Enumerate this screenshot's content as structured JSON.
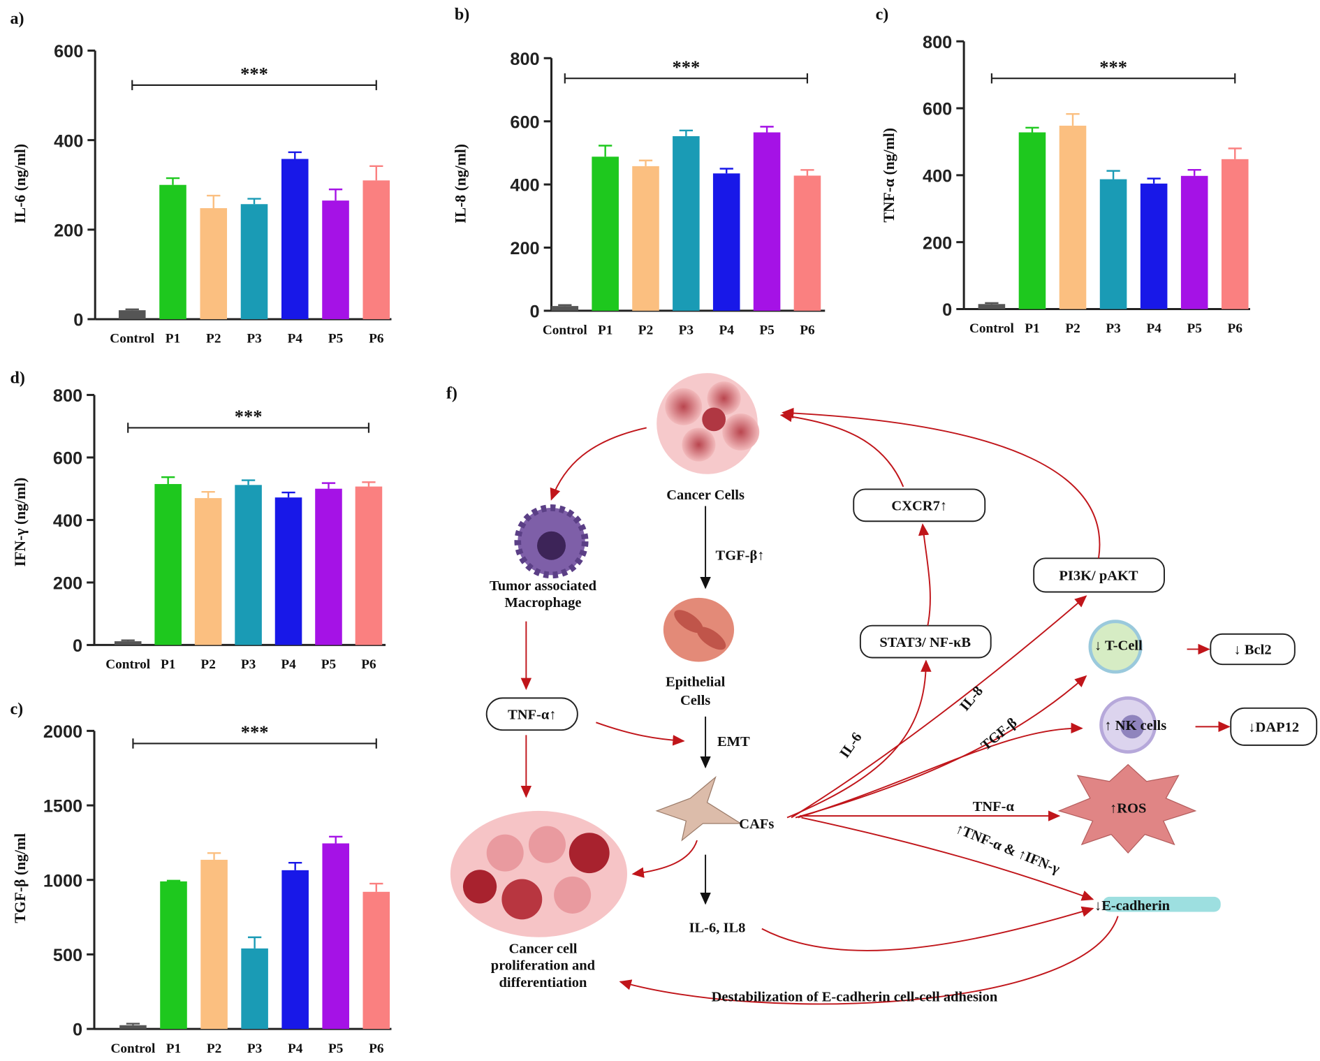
{
  "chart_data": [
    {
      "type": "bar",
      "panel": "a)",
      "ylabel": "IL-6  (ng/ml)",
      "annotation": "***",
      "categories": [
        "Control",
        "P1",
        "P2",
        "P3",
        "P4",
        "P5",
        "P6"
      ],
      "values": [
        20,
        300,
        248,
        257,
        358,
        265,
        310
      ],
      "errors": [
        2,
        15,
        28,
        12,
        15,
        25,
        32
      ],
      "colors": [
        "#555555",
        "#1ec81e",
        "#fbbf80",
        "#1a9bb5",
        "#1818e8",
        "#a512e6",
        "#fa8080"
      ],
      "ylim": [
        0,
        600
      ],
      "yticks": [
        0,
        200,
        400,
        600
      ]
    },
    {
      "type": "bar",
      "panel": "b)",
      "ylabel": "IL-8  (ng/ml)",
      "annotation": "***",
      "categories": [
        "Control",
        "P1",
        "P2",
        "P3",
        "P4",
        "P5",
        "P6"
      ],
      "values": [
        15,
        488,
        458,
        553,
        435,
        565,
        428
      ],
      "errors": [
        3,
        35,
        18,
        18,
        15,
        18,
        18
      ],
      "colors": [
        "#555555",
        "#1ec81e",
        "#fbbf80",
        "#1a9bb5",
        "#1818e8",
        "#a512e6",
        "#fa8080"
      ],
      "ylim": [
        0,
        800
      ],
      "yticks": [
        0,
        200,
        400,
        600,
        800
      ]
    },
    {
      "type": "bar",
      "panel": "c)",
      "ylabel": "TNF-α (ng/ml)",
      "annotation": "***",
      "categories": [
        "Control",
        "P1",
        "P2",
        "P3",
        "P4",
        "P5",
        "P6"
      ],
      "values": [
        15,
        528,
        548,
        388,
        375,
        398,
        448
      ],
      "errors": [
        3,
        14,
        35,
        25,
        15,
        18,
        32
      ],
      "colors": [
        "#555555",
        "#1ec81e",
        "#fbbf80",
        "#1a9bb5",
        "#1818e8",
        "#a512e6",
        "#fa8080"
      ],
      "ylim": [
        0,
        800
      ],
      "yticks": [
        0,
        200,
        400,
        600,
        800
      ]
    },
    {
      "type": "bar",
      "panel": "d)",
      "ylabel": "IFN-γ  (ng/ml)",
      "annotation": "***",
      "categories": [
        "Control",
        "P1",
        "P2",
        "P3",
        "P4",
        "P5",
        "P6"
      ],
      "values": [
        12,
        515,
        470,
        512,
        472,
        500,
        507
      ],
      "errors": [
        3,
        22,
        20,
        15,
        16,
        18,
        14
      ],
      "colors": [
        "#555555",
        "#1ec81e",
        "#fbbf80",
        "#1a9bb5",
        "#1818e8",
        "#a512e6",
        "#fa8080"
      ],
      "ylim": [
        0,
        800
      ],
      "yticks": [
        0,
        200,
        400,
        600,
        800
      ]
    },
    {
      "type": "bar",
      "panel": "c)",
      "ylabel": "TGF-β   (ng/ml",
      "annotation": "***",
      "categories": [
        "Control",
        "P1",
        "P2",
        "P3",
        "P4",
        "P5",
        "P6"
      ],
      "values": [
        25,
        990,
        1135,
        540,
        1065,
        1245,
        920
      ],
      "errors": [
        10,
        5,
        45,
        75,
        50,
        45,
        55
      ],
      "colors": [
        "#555555",
        "#1ec81e",
        "#fbbf80",
        "#1a9bb5",
        "#1818e8",
        "#a512e6",
        "#fa8080"
      ],
      "ylim": [
        0,
        2000
      ],
      "yticks": [
        0,
        500,
        1000,
        1500,
        2000
      ]
    }
  ],
  "diagram": {
    "panel": "f)",
    "nodes": {
      "cancer_cells": "Cancer Cells",
      "tam": [
        "Tumor associated",
        "Macrophage"
      ],
      "tgfb": "TGF-β↑",
      "epithelial": [
        "Epithelial",
        "Cells"
      ],
      "emt": "EMT",
      "cafs": "CAFs",
      "tnfa_box": "TNF-α↑",
      "proliferation": [
        "Cancer cell",
        "proliferation and",
        "differentiation"
      ],
      "il6_il8": "IL-6, IL8",
      "destabilization": "Destabilization of E-cadherin cell-cell adhesion",
      "cxcr7": "CXCR7↑",
      "stat3": "STAT3/ NF-κB",
      "pi3k": "PI3K/ pAKT",
      "tcell": "↓ T-Cell",
      "bcl2": "↓ Bcl2",
      "nk": "↑ NK cells",
      "dap12": "↓DAP12",
      "ros": "↑ROS",
      "ecadherin": "↓E-cadherin"
    },
    "edge_labels": {
      "il6": "IL-6",
      "il8": "IL-8",
      "tgfb": "TGF-β",
      "tnfa": "TNF-α",
      "tnf_ifn": "↑TNF-α & ↑IFN-γ"
    }
  }
}
